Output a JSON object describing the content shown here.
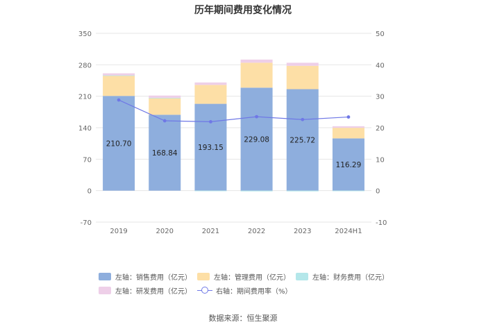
{
  "chart_data": {
    "type": "bar",
    "title": "历年期间费用变化情况",
    "categories": [
      "2019",
      "2020",
      "2021",
      "2022",
      "2023",
      "2024H1"
    ],
    "left_axis": {
      "min": -70,
      "max": 350,
      "ticks": [
        -70,
        0,
        70,
        140,
        210,
        280,
        350
      ]
    },
    "right_axis": {
      "min": -10,
      "max": 50,
      "ticks": [
        -10,
        0,
        10,
        20,
        30,
        40,
        50
      ]
    },
    "series": [
      {
        "name": "左轴：销售费用（亿元）",
        "axis": "left",
        "kind": "bar",
        "color": "#8eaedd",
        "values": [
          210.7,
          168.84,
          193.15,
          229.08,
          225.72,
          116.29
        ],
        "labels": [
          "210.70",
          "168.84",
          "193.15",
          "229.08",
          "225.72",
          "116.29"
        ]
      },
      {
        "name": "左轴：管理费用（亿元）",
        "axis": "left",
        "kind": "bar",
        "color": "#fddfa6",
        "values": [
          45.5,
          37.5,
          42.0,
          55.5,
          52.0,
          23.5
        ]
      },
      {
        "name": "左轴：财务费用（亿元）",
        "axis": "left",
        "kind": "bar",
        "color": "#b4e7ea",
        "values": [
          0.3,
          0.2,
          -0.3,
          -1.6,
          -1.6,
          -1.2
        ]
      },
      {
        "name": "左轴：研发费用（亿元）",
        "axis": "left",
        "kind": "bar",
        "color": "#eecfe8",
        "values": [
          4.5,
          5.0,
          5.5,
          7.0,
          6.8,
          3.5
        ]
      },
      {
        "name": "右轴：期间费用率（%）",
        "axis": "right",
        "kind": "line",
        "color": "#6f78e6",
        "values": [
          28.8,
          22.2,
          21.9,
          23.5,
          22.6,
          23.4
        ]
      }
    ]
  },
  "legend": [
    {
      "label": "左轴：销售费用（亿元）",
      "color": "#8eaedd",
      "kind": "bar"
    },
    {
      "label": "左轴：管理费用（亿元）",
      "color": "#fddfa6",
      "kind": "bar"
    },
    {
      "label": "左轴：财务费用（亿元）",
      "color": "#b4e7ea",
      "kind": "bar"
    },
    {
      "label": "左轴：研发费用（亿元）",
      "color": "#eecfe8",
      "kind": "bar"
    },
    {
      "label": "右轴：期间费用率（%）",
      "color": "#6f78e6",
      "kind": "line"
    }
  ],
  "source": "数据来源：恒生聚源"
}
